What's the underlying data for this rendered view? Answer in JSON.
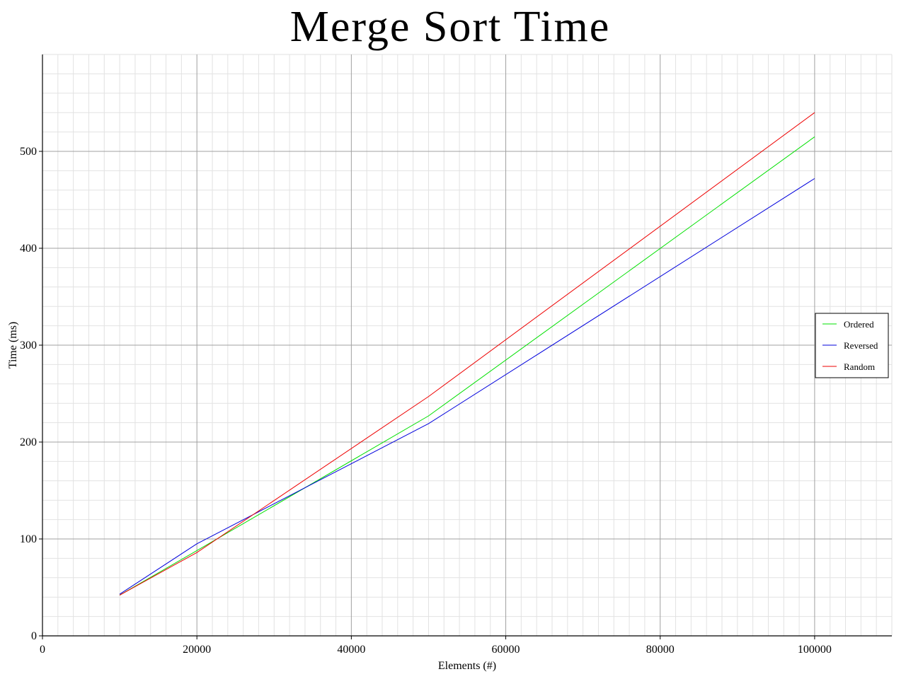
{
  "chart_data": {
    "type": "line",
    "title": "Merge Sort Time",
    "xlabel": "Elements (#)",
    "ylabel": "Time (ms)",
    "xlim": [
      0,
      110000
    ],
    "ylim": [
      0,
      600
    ],
    "x_ticks": [
      0,
      20000,
      40000,
      60000,
      80000,
      100000
    ],
    "y_ticks": [
      0,
      100,
      200,
      300,
      400,
      500
    ],
    "x_tick_labels": [
      "0",
      "20000",
      "40000",
      "60000",
      "80000",
      "100000"
    ],
    "y_tick_labels": [
      "0",
      "100",
      "200",
      "300",
      "400",
      "500"
    ],
    "x_minor_step": 2000,
    "y_minor_step": 20,
    "grid": true,
    "legend_position": "right",
    "x": [
      10000,
      20000,
      50000,
      100000
    ],
    "series": [
      {
        "name": "Ordered",
        "color": "#00e000",
        "values": [
          42,
          88,
          227,
          515
        ]
      },
      {
        "name": "Reversed",
        "color": "#0000dd",
        "values": [
          43,
          95,
          219,
          472
        ]
      },
      {
        "name": "Random",
        "color": "#ee0000",
        "values": [
          42,
          86,
          247,
          540
        ]
      }
    ]
  }
}
